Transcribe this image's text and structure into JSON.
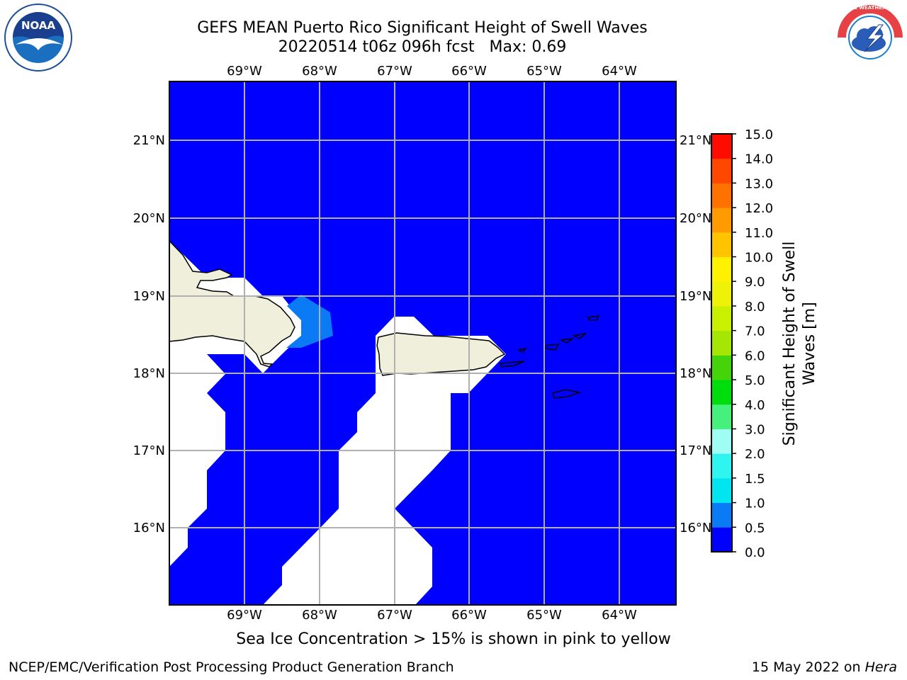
{
  "title": {
    "line1": "GEFS MEAN Puerto Rico Significant Height of Swell Waves",
    "line2": "20220514 t06z 096h fcst   Max: 0.69"
  },
  "map": {
    "lon_labels": [
      "69°W",
      "68°W",
      "67°W",
      "66°W",
      "65°W",
      "64°W"
    ],
    "lat_labels": [
      "21°N",
      "20°N",
      "19°N",
      "18°N",
      "17°N",
      "16°N"
    ],
    "caption": "Sea Ice Concentration > 15% is shown in pink to yellow",
    "colors": {
      "ocean_base": "#0000ff",
      "swell_0_5_1_0": "#0a7af5",
      "land": "#efefdc",
      "grid": "#b0b0b0"
    }
  },
  "colorbar": {
    "label": "Significant Height of Swell Waves [m]",
    "ticks": [
      "0.0",
      "0.5",
      "1.0",
      "1.5",
      "2.0",
      "3.0",
      "4.0",
      "5.0",
      "6.0",
      "7.0",
      "8.0",
      "9.0",
      "10.0",
      "11.0",
      "12.0",
      "13.0",
      "14.0",
      "15.0"
    ],
    "colors": [
      "#0000ff",
      "#0a7af5",
      "#00e5ef",
      "#2ff5f0",
      "#9ffdf3",
      "#46f07c",
      "#00dd0c",
      "#45d40a",
      "#a5e605",
      "#c9f000",
      "#eef208",
      "#fff100",
      "#ffc300",
      "#ff9a00",
      "#ff7200",
      "#ff4700",
      "#ff0c00"
    ]
  },
  "logos": {
    "left_text": "NOAA",
    "right_text": "NATIONAL WEATHER SERVICE"
  },
  "footer": {
    "left": "NCEP/EMC/Verification Post Processing Product Generation Branch",
    "right_prefix": "15 May 2022 on ",
    "right_host": "Hera"
  }
}
